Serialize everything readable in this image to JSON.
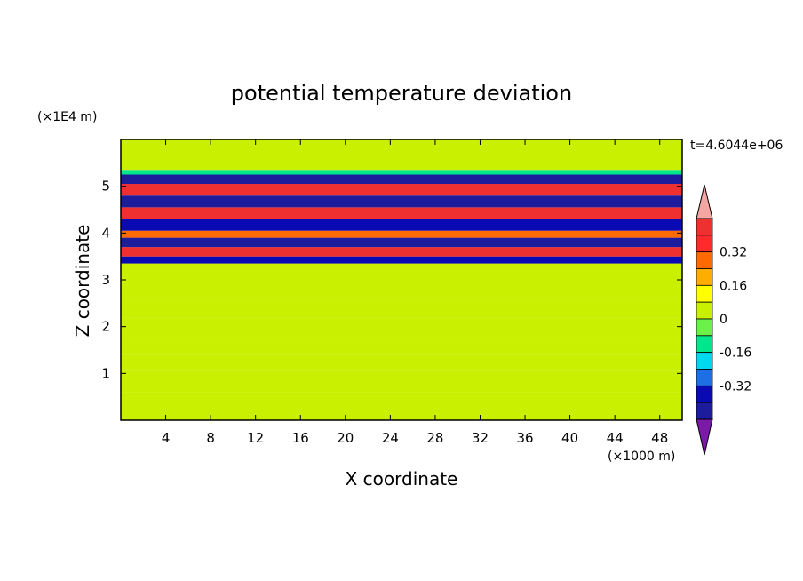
{
  "chart_data": {
    "type": "heatmap",
    "title": "potential temperature deviation",
    "time_label": "t=4.6044e+06",
    "xlabel": "X coordinate",
    "ylabel": "Z coordinate",
    "x_unit": "(×1000 m)",
    "y_unit": "(×1E4 m)",
    "xlim": [
      0,
      50
    ],
    "ylim": [
      0,
      6
    ],
    "x_ticks": [
      "4",
      "8",
      "12",
      "16",
      "20",
      "24",
      "28",
      "32",
      "36",
      "40",
      "44",
      "48"
    ],
    "y_ticks": [
      "1",
      "2",
      "3",
      "4",
      "5"
    ],
    "colorbar": {
      "levels": [
        -0.48,
        -0.4,
        -0.32,
        -0.24,
        -0.16,
        -0.08,
        0,
        0.08,
        0.16,
        0.24,
        0.32,
        0.4,
        0.48
      ],
      "labels": [
        "0.32",
        "0.16",
        "0",
        "-0.16",
        "-0.32"
      ],
      "colors": [
        "#7b19a8",
        "#1c1c9c",
        "#0a0ab5",
        "#1e6ee6",
        "#00d8f0",
        "#00e68c",
        "#6cf04a",
        "#c8f000",
        "#ffff00",
        "#ffae00",
        "#ff6a00",
        "#ff2a2a",
        "#ef3030",
        "#f4a7a2"
      ]
    },
    "bands": [
      {
        "z": 0.0,
        "h": 0.6,
        "value": 0.0
      },
      {
        "z": 0.6,
        "h": 0.3,
        "value": 0.05
      },
      {
        "z": 0.9,
        "h": 0.15,
        "value": 0.0
      },
      {
        "z": 1.05,
        "h": 0.35,
        "value": 0.06
      },
      {
        "z": 1.4,
        "h": 0.3,
        "value": 0.0
      },
      {
        "z": 1.7,
        "h": 0.5,
        "value": 0.06
      },
      {
        "z": 2.2,
        "h": 0.4,
        "value": 0.0
      },
      {
        "z": 2.6,
        "h": 0.6,
        "value": 0.05
      },
      {
        "z": 3.2,
        "h": 0.15,
        "value": 0.0
      },
      {
        "z": 3.35,
        "h": 0.15,
        "value": -0.4
      },
      {
        "z": 3.5,
        "h": 0.2,
        "value": 0.4
      },
      {
        "z": 3.7,
        "h": 0.2,
        "value": -0.42
      },
      {
        "z": 3.9,
        "h": 0.15,
        "value": 0.3
      },
      {
        "z": 4.05,
        "h": 0.25,
        "value": -0.4
      },
      {
        "z": 4.3,
        "h": 0.25,
        "value": 0.42
      },
      {
        "z": 4.55,
        "h": 0.25,
        "value": -0.42
      },
      {
        "z": 4.8,
        "h": 0.25,
        "value": 0.42
      },
      {
        "z": 5.05,
        "h": 0.2,
        "value": -0.42
      },
      {
        "z": 5.25,
        "h": 0.1,
        "value": -0.12
      },
      {
        "z": 5.35,
        "h": 0.65,
        "value": 0.0
      }
    ]
  }
}
